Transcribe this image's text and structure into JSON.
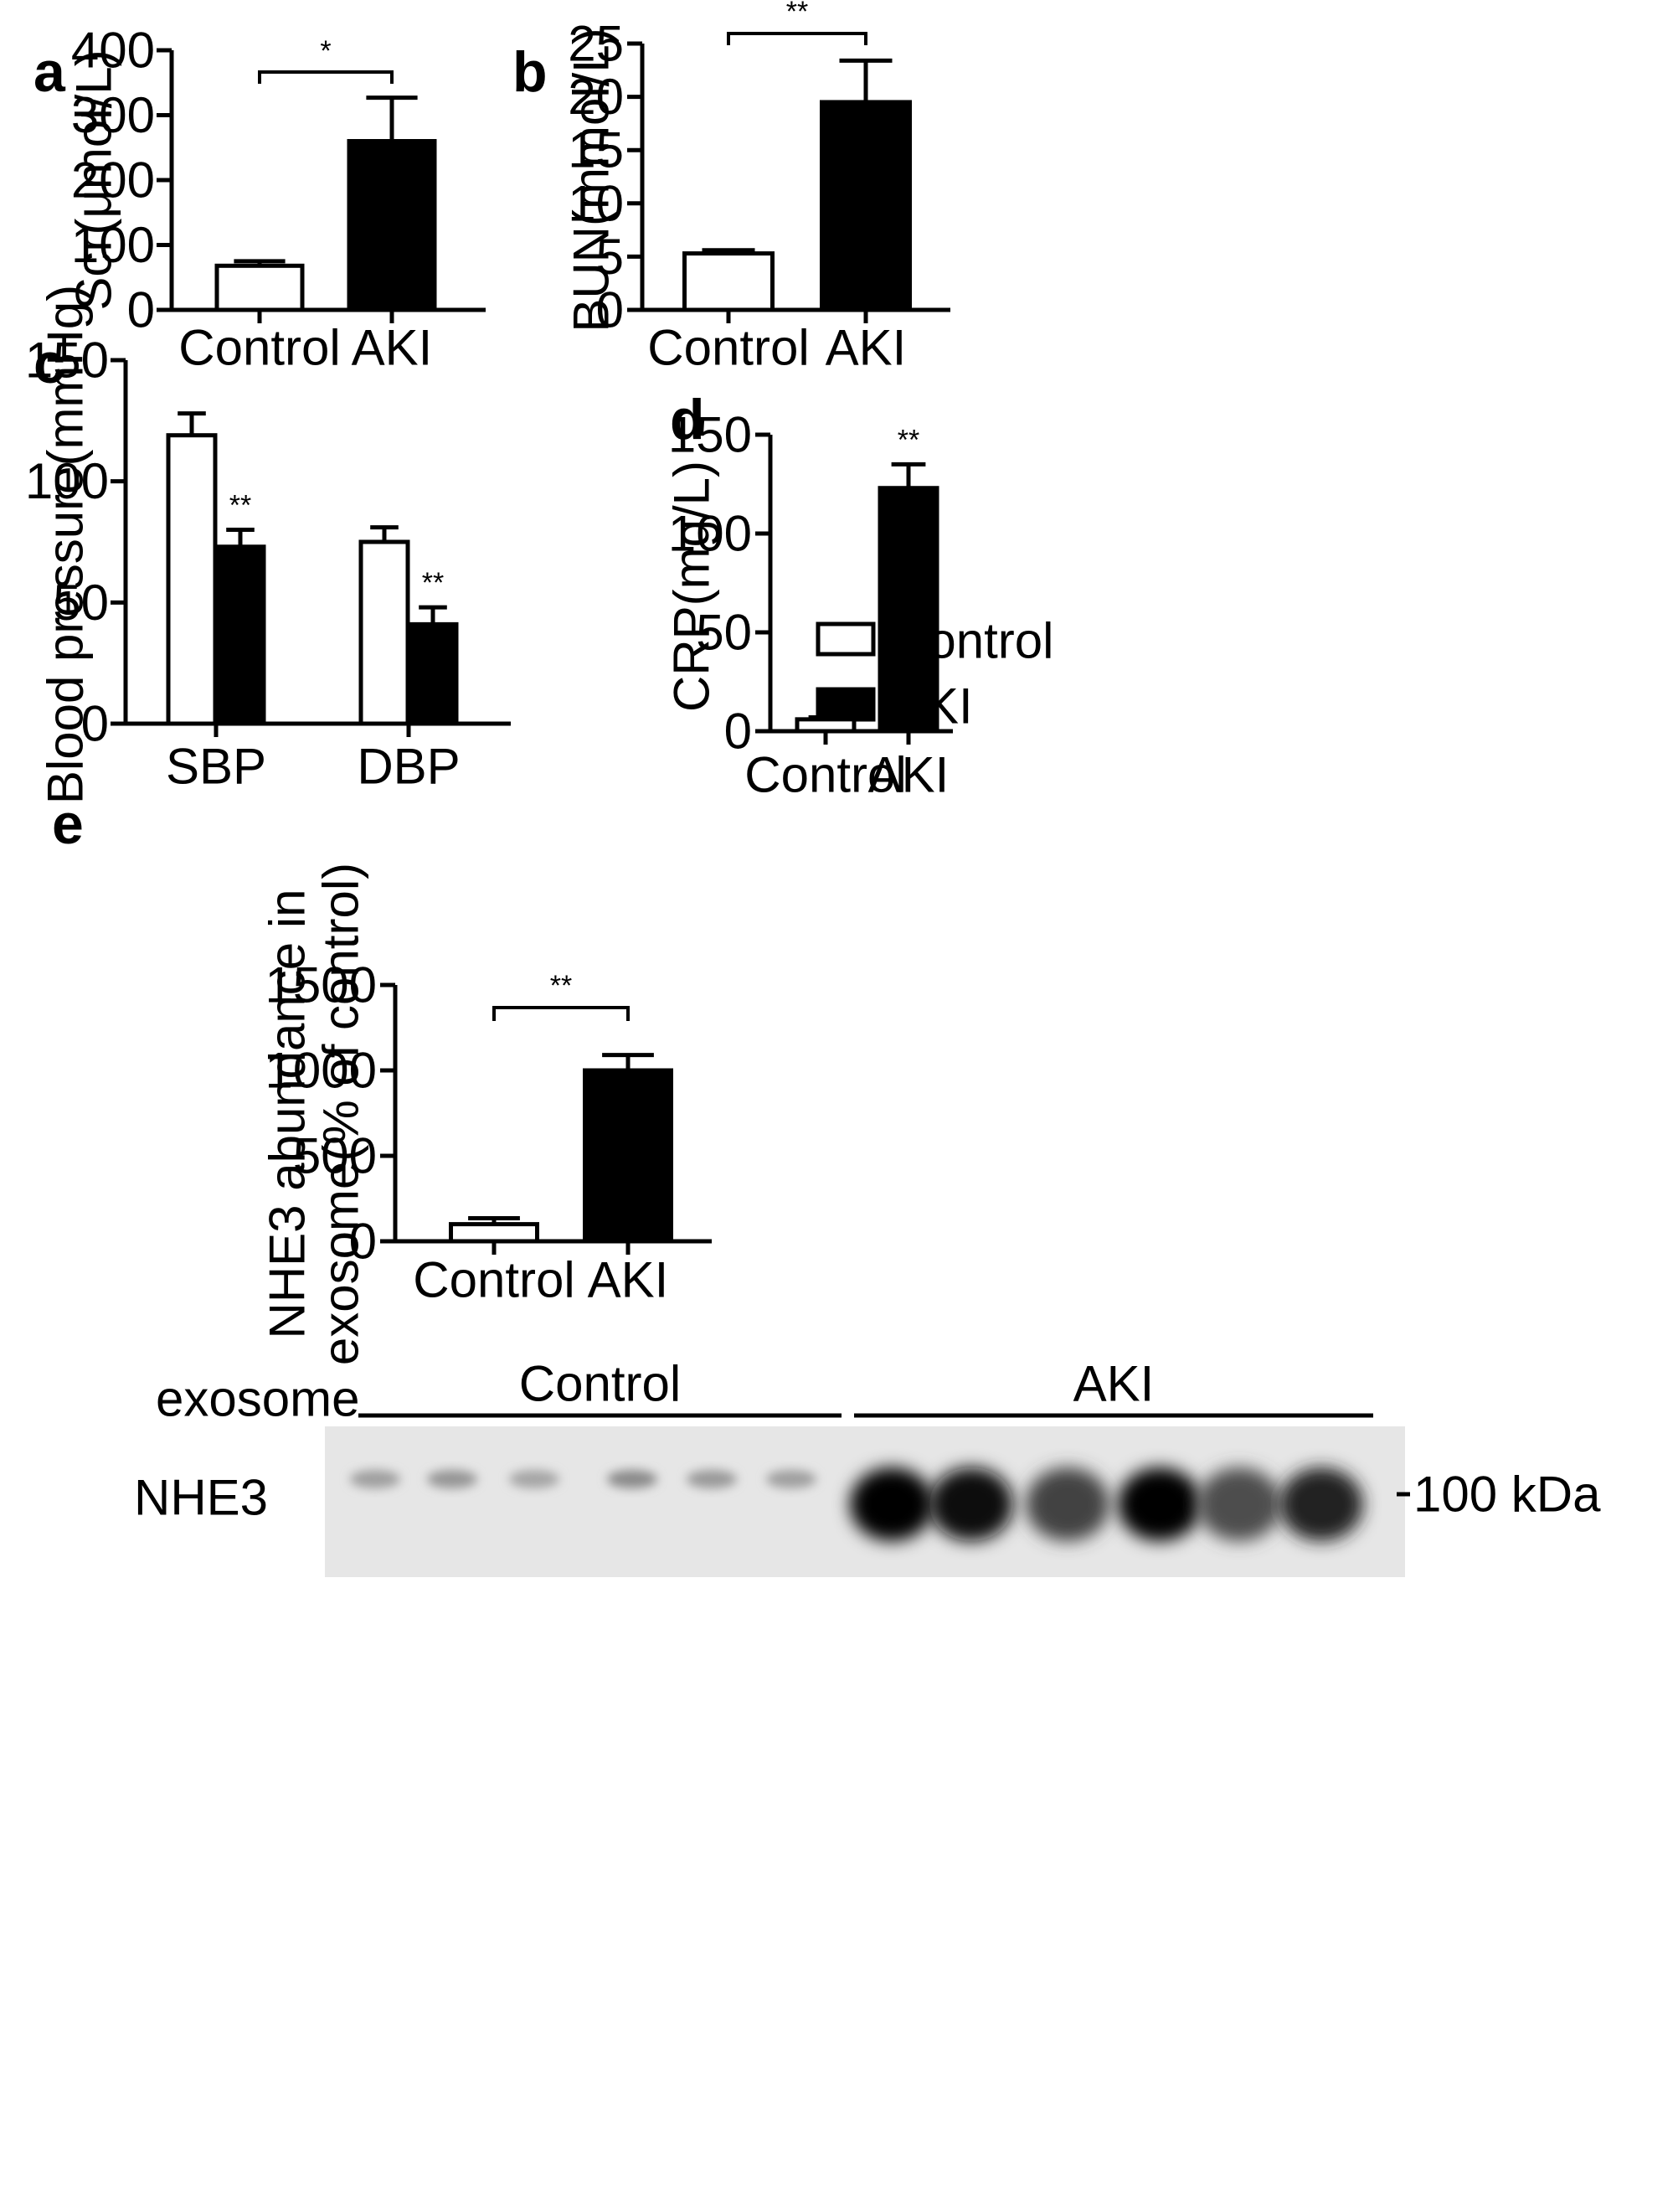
{
  "chart_data": [
    {
      "id": "a",
      "panel_label": "a",
      "type": "bar",
      "categories": [
        "Control",
        "AKI"
      ],
      "values": [
        68,
        260
      ],
      "errors": [
        7,
        67
      ],
      "colors": [
        "#ffffff",
        "#000000"
      ],
      "ylabel": "Scr(μmol/L)",
      "ylim": [
        0,
        400
      ],
      "yticks": [
        0,
        100,
        200,
        300,
        400
      ],
      "significance": [
        {
          "from": 0,
          "to": 1,
          "label": "*"
        }
      ]
    },
    {
      "id": "b",
      "panel_label": "b",
      "type": "bar",
      "categories": [
        "Control",
        "AKI"
      ],
      "values": [
        5.3,
        19.5
      ],
      "errors": [
        0.3,
        3.9
      ],
      "colors": [
        "#ffffff",
        "#000000"
      ],
      "ylabel": "BUN(mmol/L)",
      "ylim": [
        0,
        25
      ],
      "yticks": [
        0,
        5,
        10,
        15,
        20,
        25
      ],
      "significance": [
        {
          "from": 0,
          "to": 1,
          "label": "**"
        }
      ]
    },
    {
      "id": "c",
      "panel_label": "c",
      "type": "bar",
      "categories": [
        "SBP",
        "DBP"
      ],
      "series": [
        {
          "name": "Control",
          "values": [
            119,
            75
          ],
          "errors": [
            9,
            6
          ],
          "color": "#ffffff"
        },
        {
          "name": "AKI",
          "values": [
            73,
            41
          ],
          "errors": [
            7,
            7
          ],
          "color": "#000000"
        }
      ],
      "ylabel": "Blood pressure(mmHg)",
      "ylim": [
        0,
        150
      ],
      "yticks": [
        0,
        50,
        100,
        150
      ],
      "legend": "top-right",
      "markers": [
        {
          "category": 0,
          "series": 1,
          "label": "**"
        },
        {
          "category": 1,
          "series": 1,
          "label": "**"
        }
      ]
    },
    {
      "id": "d",
      "panel_label": "d",
      "type": "bar",
      "categories": [
        "Control",
        "AKI"
      ],
      "values": [
        6,
        123
      ],
      "errors": [
        1,
        12
      ],
      "colors": [
        "#ffffff",
        "#000000"
      ],
      "ylabel": "CRP(mg/L)",
      "ylim": [
        0,
        150
      ],
      "yticks": [
        0,
        50,
        100,
        150
      ],
      "markers": [
        {
          "index": 1,
          "label": "**"
        }
      ]
    },
    {
      "id": "e",
      "panel_label": "e",
      "type": "bar",
      "categories": [
        "Control",
        "AKI"
      ],
      "values": [
        100,
        1000
      ],
      "errors": [
        35,
        90
      ],
      "colors": [
        "#ffffff",
        "#000000"
      ],
      "ylabel_lines": [
        "NHE3 abundance in",
        "exosome(% of control)"
      ],
      "ylim": [
        0,
        1500
      ],
      "yticks": [
        0,
        500,
        1000,
        1500
      ],
      "significance": [
        {
          "from": 0,
          "to": 1,
          "label": "**"
        }
      ]
    }
  ],
  "blot": {
    "row_label": "exosome",
    "protein_label": "NHE3",
    "marker_label": "100 kDa",
    "groups": [
      {
        "label": "Control",
        "lanes": 6
      },
      {
        "label": "AKI",
        "lanes": 6
      }
    ],
    "band_intensity": [
      0.25,
      0.3,
      0.22,
      0.35,
      0.28,
      0.25,
      1.0,
      0.95,
      0.7,
      1.0,
      0.65,
      0.85
    ]
  }
}
